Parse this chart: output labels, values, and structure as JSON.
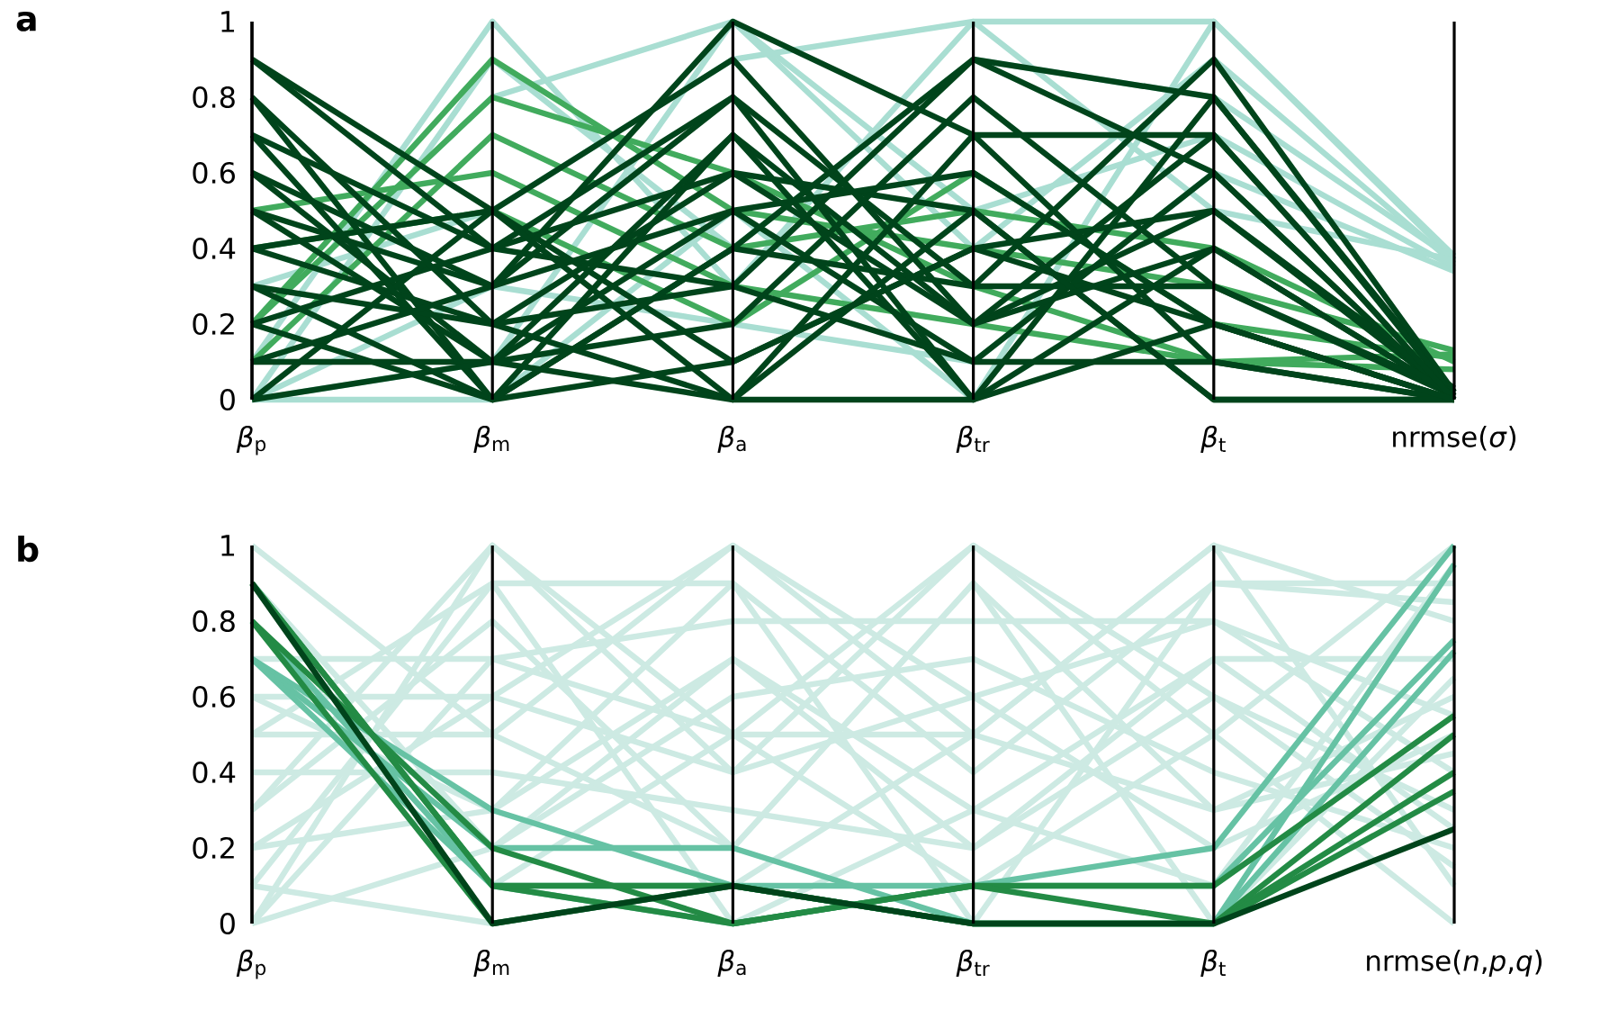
{
  "chart_data": [
    {
      "type": "line",
      "title": "a",
      "categories": [
        "*β*$_{p}$",
        "*β*$_{m}$",
        "*β*$_{a}$",
        "*β*$_{tr}$",
        "*β*$_{t}$",
        "nrmse(*σ*)"
      ],
      "ylim": [
        0,
        1
      ],
      "yticks": [
        0,
        0.2,
        0.4,
        0.6,
        0.8,
        1
      ],
      "grid": "x",
      "series": [
        {
          "color": "#a9ded2",
          "values": [
            0,
            0,
            0.5,
            0,
            1,
            0.37
          ]
        },
        {
          "color": "#a9ded2",
          "values": [
            0,
            0.1,
            1,
            0.4,
            0.9,
            0.36
          ]
        },
        {
          "color": "#a9ded2",
          "values": [
            0.1,
            1,
            0.3,
            1,
            1,
            0.38
          ]
        },
        {
          "color": "#a9ded2",
          "values": [
            0,
            0.9,
            0.4,
            0.9,
            0.8,
            0.37
          ]
        },
        {
          "color": "#a9ded2",
          "values": [
            0.2,
            0.8,
            1,
            0.5,
            0.7,
            0.35
          ]
        },
        {
          "color": "#a9ded2",
          "values": [
            0,
            0.3,
            0.2,
            0.1,
            0.6,
            0.34
          ]
        },
        {
          "color": "#a9ded2",
          "values": [
            0.3,
            0.5,
            0.9,
            1,
            0.5,
            0.37
          ]
        },
        {
          "color": "#41ab5d",
          "values": [
            0.2,
            0.8,
            0.6,
            0.3,
            0.1,
            0.12
          ]
        },
        {
          "color": "#41ab5d",
          "values": [
            0.1,
            0.7,
            0.4,
            0.5,
            0.4,
            0.1
          ]
        },
        {
          "color": "#41ab5d",
          "values": [
            0.5,
            0.6,
            0.3,
            0.2,
            0.1,
            0.08
          ]
        },
        {
          "color": "#41ab5d",
          "values": [
            0.2,
            0.9,
            0.5,
            0.4,
            0.3,
            0.13
          ]
        },
        {
          "color": "#41ab5d",
          "values": [
            0.4,
            0.5,
            0.2,
            0.6,
            0.2,
            0.11
          ]
        },
        {
          "color": "#00441b",
          "values": [
            0.9,
            0.5,
            0.1,
            0.4,
            0.2,
            0
          ]
        },
        {
          "color": "#00441b",
          "values": [
            0.8,
            0,
            0.7,
            0.2,
            0.5,
            0.01
          ]
        },
        {
          "color": "#00441b",
          "values": [
            0.7,
            0.4,
            0.3,
            0.9,
            0.8,
            0.02
          ]
        },
        {
          "color": "#00441b",
          "values": [
            0.6,
            0.1,
            0.5,
            0.1,
            0.6,
            0
          ]
        },
        {
          "color": "#00441b",
          "values": [
            0.5,
            0.3,
            0.8,
            0,
            0.4,
            0.01
          ]
        },
        {
          "color": "#00441b",
          "values": [
            0.4,
            0.2,
            0,
            0.7,
            0.1,
            0
          ]
        },
        {
          "color": "#00441b",
          "values": [
            0.3,
            0,
            0.4,
            0.3,
            0.9,
            0.02
          ]
        },
        {
          "color": "#00441b",
          "values": [
            0.2,
            0.4,
            0.6,
            0.5,
            0,
            0
          ]
        },
        {
          "color": "#00441b",
          "values": [
            0.1,
            0.1,
            0.2,
            0.8,
            0.3,
            0.01
          ]
        },
        {
          "color": "#00441b",
          "values": [
            0,
            0.5,
            0.9,
            0.2,
            0.7,
            0
          ]
        },
        {
          "color": "#00441b",
          "values": [
            0.7,
            0,
            0.1,
            0.4,
            0.5,
            0.03
          ]
        },
        {
          "color": "#00441b",
          "values": [
            0.6,
            0.3,
            0.5,
            0.6,
            0.2,
            0
          ]
        },
        {
          "color": "#00441b",
          "values": [
            0.5,
            0.1,
            0.7,
            0,
            0.8,
            0.01
          ]
        },
        {
          "color": "#00441b",
          "values": [
            0.3,
            0.2,
            0.3,
            0.1,
            0.1,
            0
          ]
        },
        {
          "color": "#00441b",
          "values": [
            0.9,
            0.4,
            0.8,
            0.3,
            0.3,
            0.02
          ]
        },
        {
          "color": "#00441b",
          "values": [
            0.2,
            0,
            0.4,
            0.9,
            0.6,
            0
          ]
        },
        {
          "color": "#00441b",
          "values": [
            0.4,
            0.5,
            0,
            0.5,
            0,
            0
          ]
        },
        {
          "color": "#00441b",
          "values": [
            0.8,
            0.2,
            0.6,
            0.2,
            0.4,
            0.01
          ]
        },
        {
          "color": "#00441b",
          "values": [
            0.1,
            0.3,
            1,
            0.7,
            0.7,
            0
          ]
        },
        {
          "color": "#00441b",
          "values": [
            0,
            0.1,
            0,
            0,
            0.2,
            0
          ]
        }
      ]
    },
    {
      "type": "line",
      "title": "b",
      "categories": [
        "*β*$_{p}$",
        "*β*$_{m}$",
        "*β*$_{a}$",
        "*β*$_{tr}$",
        "*β*$_{t}$",
        "nrmse(*n*,*p*,*q*)"
      ],
      "ylim": [
        0,
        1
      ],
      "yticks": [
        0,
        0.2,
        0.4,
        0.6,
        0.8,
        1
      ],
      "grid": "x",
      "series": [
        {
          "color": "#cdeae3",
          "values": [
            0,
            1,
            0.5,
            1,
            0.5,
            1
          ]
        },
        {
          "color": "#cdeae3",
          "values": [
            0.1,
            0.9,
            0.9,
            0.4,
            0.9,
            0.9
          ]
        },
        {
          "color": "#cdeae3",
          "values": [
            0.5,
            0.5,
            1,
            0.5,
            1,
            0.8
          ]
        },
        {
          "color": "#cdeae3",
          "values": [
            0.3,
            0.8,
            0.2,
            0.9,
            0.3,
            0.6
          ]
        },
        {
          "color": "#cdeae3",
          "values": [
            0.6,
            0.3,
            0.7,
            0.3,
            0.7,
            0.7
          ]
        },
        {
          "color": "#cdeae3",
          "values": [
            0.2,
            0.6,
            0.4,
            0.6,
            0.2,
            0.5
          ]
        },
        {
          "color": "#cdeae3",
          "values": [
            0,
            0.7,
            0.8,
            0.8,
            0.8,
            0.4
          ]
        },
        {
          "color": "#cdeae3",
          "values": [
            0.4,
            0.4,
            0.3,
            0.2,
            0.6,
            0.3
          ]
        },
        {
          "color": "#cdeae3",
          "values": [
            0.9,
            0.2,
            0.6,
            0.7,
            0.4,
            0.2
          ]
        },
        {
          "color": "#cdeae3",
          "values": [
            0.1,
            0,
            0.1,
            0.5,
            1,
            0.1
          ]
        },
        {
          "color": "#cdeae3",
          "values": [
            0.8,
            0.1,
            0.5,
            0.1,
            0.5,
            0
          ]
        },
        {
          "color": "#cdeae3",
          "values": [
            0.5,
            0.9,
            0,
            0.3,
            0.1,
            0.95
          ]
        },
        {
          "color": "#cdeae3",
          "values": [
            0.2,
            0.3,
            0.9,
            0,
            0.9,
            0.85
          ]
        },
        {
          "color": "#cdeae3",
          "values": [
            1,
            0.5,
            0.2,
            0.9,
            0,
            0.65
          ]
        },
        {
          "color": "#cdeae3",
          "values": [
            0.7,
            0.7,
            0.5,
            0.5,
            0.3,
            0.45
          ]
        },
        {
          "color": "#cdeae3",
          "values": [
            0,
            0.2,
            0.7,
            0.2,
            0.7,
            0.25
          ]
        },
        {
          "color": "#cdeae3",
          "values": [
            0.3,
            1,
            0.4,
            1,
            0.6,
            0.15
          ]
        },
        {
          "color": "#cdeae3",
          "values": [
            0.6,
            0.6,
            1,
            0.6,
            0.8,
            0.55
          ]
        },
        {
          "color": "#66c2a4",
          "values": [
            0.7,
            0.3,
            0.1,
            0.1,
            0.2,
            1
          ]
        },
        {
          "color": "#66c2a4",
          "values": [
            0.7,
            0.2,
            0.2,
            0,
            0,
            0.95
          ]
        },
        {
          "color": "#66c2a4",
          "values": [
            0.8,
            0.1,
            0,
            0.1,
            0.1,
            0.75
          ]
        },
        {
          "color": "#66c2a4",
          "values": [
            0.7,
            0.1,
            0.1,
            0,
            0,
            0.72
          ]
        },
        {
          "color": "#238b45",
          "values": [
            0.8,
            0.2,
            0,
            0.1,
            0.1,
            0.55
          ]
        },
        {
          "color": "#238b45",
          "values": [
            0.9,
            0.1,
            0,
            0.1,
            0,
            0.5
          ]
        },
        {
          "color": "#238b45",
          "values": [
            0.8,
            0,
            0.1,
            0,
            0,
            0.4
          ]
        },
        {
          "color": "#238b45",
          "values": [
            0.9,
            0.1,
            0.1,
            0,
            0,
            0.35
          ]
        },
        {
          "color": "#00441b",
          "values": [
            0.9,
            0,
            0.1,
            0,
            0,
            0.25
          ]
        }
      ]
    }
  ]
}
